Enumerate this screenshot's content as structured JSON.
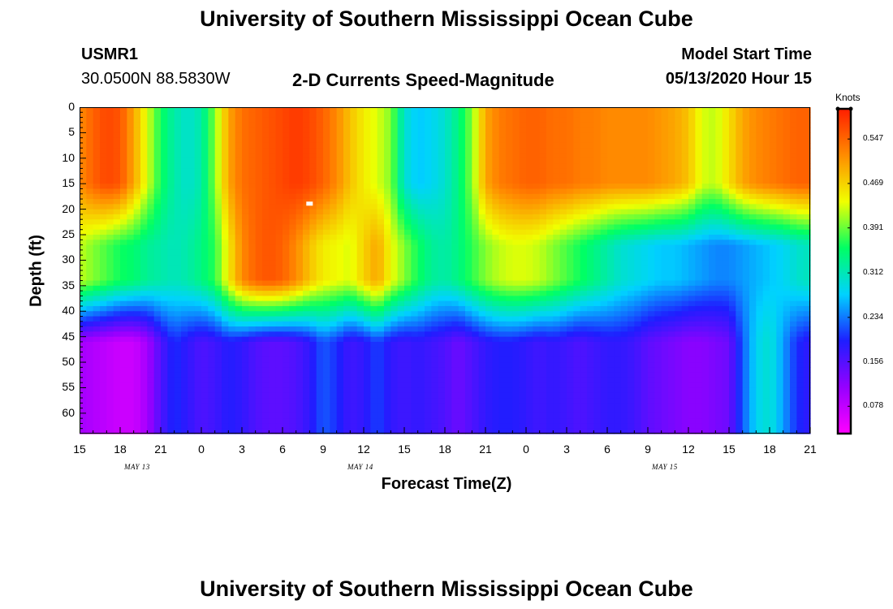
{
  "header": {
    "top_title": "University of Southern Mississippi Ocean Cube",
    "bottom_title": "University of Southern Mississippi Ocean Cube",
    "station_id": "USMR1",
    "station_coords": "30.0500N 88.5830W",
    "product_title": "2-D Currents Speed-Magnitude",
    "model_start_label": "Model Start Time",
    "model_start_value": "05/13/2020 Hour 15"
  },
  "chart_data": {
    "type": "heatmap",
    "title": "2-D Currents Speed-Magnitude",
    "xlabel": "Forecast Time(Z)",
    "ylabel": "Depth (ft)",
    "colorbar_label": "Knots",
    "x_ticks": [
      "15",
      "18",
      "21",
      "0",
      "3",
      "6",
      "9",
      "12",
      "15",
      "18",
      "21",
      "0",
      "3",
      "6",
      "9",
      "12",
      "15",
      "18",
      "21"
    ],
    "x_range_hours": [
      0,
      54
    ],
    "date_labels": [
      {
        "text": "MAY 13",
        "hour": 4.5
      },
      {
        "text": "MAY 14",
        "hour": 21
      },
      {
        "text": "MAY 15",
        "hour": 43.5
      }
    ],
    "y_ticks": [
      "0",
      "5",
      "10",
      "15",
      "20",
      "25",
      "30",
      "35",
      "40",
      "45",
      "50",
      "55",
      "60"
    ],
    "y_range_ft": [
      0,
      64
    ],
    "colorbar_ticks": [
      "0.547",
      "0.469",
      "0.391",
      "0.312",
      "0.234",
      "0.156",
      "0.078"
    ],
    "colorbar_range": [
      0.03,
      0.6
    ],
    "colormap": [
      "#ff00ff",
      "#9600ff",
      "#1e1eff",
      "#00d2ff",
      "#00ff64",
      "#f0ff00",
      "#ff8c00",
      "#ff1e00"
    ],
    "depth_profile_hours": [
      0,
      1,
      2,
      3,
      4,
      5,
      6,
      7,
      8,
      9,
      10,
      11,
      12,
      13,
      14,
      15,
      16,
      17,
      18,
      19,
      20,
      21,
      22,
      23,
      24,
      25,
      26,
      27,
      28,
      29,
      30,
      31,
      32,
      33,
      34,
      35,
      36,
      37,
      38,
      39,
      40,
      41,
      42,
      43,
      44,
      45,
      46,
      47,
      48,
      49,
      50,
      51,
      52,
      53,
      54
    ],
    "speed_by_hour": {
      "surface_0_15ft": [
        0.52,
        0.55,
        0.57,
        0.56,
        0.5,
        0.43,
        0.36,
        0.32,
        0.3,
        0.32,
        0.4,
        0.5,
        0.54,
        0.55,
        0.56,
        0.57,
        0.58,
        0.57,
        0.55,
        0.52,
        0.48,
        0.45,
        0.43,
        0.4,
        0.3,
        0.27,
        0.28,
        0.3,
        0.34,
        0.4,
        0.5,
        0.53,
        0.54,
        0.55,
        0.55,
        0.54,
        0.54,
        0.53,
        0.53,
        0.52,
        0.52,
        0.52,
        0.52,
        0.51,
        0.5,
        0.48,
        0.43,
        0.42,
        0.46,
        0.5,
        0.52,
        0.53,
        0.54,
        0.55,
        0.55
      ],
      "mid_20_35ft": [
        0.42,
        0.4,
        0.38,
        0.36,
        0.35,
        0.33,
        0.32,
        0.31,
        0.32,
        0.34,
        0.37,
        0.45,
        0.52,
        0.55,
        0.56,
        0.55,
        0.52,
        0.48,
        0.45,
        0.44,
        0.43,
        0.47,
        0.5,
        0.44,
        0.4,
        0.36,
        0.33,
        0.32,
        0.34,
        0.37,
        0.4,
        0.42,
        0.43,
        0.43,
        0.42,
        0.4,
        0.38,
        0.36,
        0.34,
        0.32,
        0.3,
        0.29,
        0.28,
        0.27,
        0.27,
        0.26,
        0.25,
        0.24,
        0.24,
        0.25,
        0.26,
        0.27,
        0.28,
        0.3,
        0.31
      ],
      "bottom_45_64ft": [
        0.1,
        0.09,
        0.08,
        0.07,
        0.07,
        0.1,
        0.16,
        0.2,
        0.18,
        0.16,
        0.17,
        0.19,
        0.18,
        0.16,
        0.15,
        0.15,
        0.16,
        0.18,
        0.22,
        0.2,
        0.17,
        0.18,
        0.21,
        0.18,
        0.17,
        0.18,
        0.17,
        0.16,
        0.14,
        0.16,
        0.18,
        0.19,
        0.19,
        0.18,
        0.17,
        0.18,
        0.17,
        0.16,
        0.17,
        0.18,
        0.18,
        0.17,
        0.15,
        0.14,
        0.13,
        0.12,
        0.12,
        0.13,
        0.14,
        0.22,
        0.28,
        0.3,
        0.25,
        0.2,
        0.18
      ]
    },
    "max_marker": {
      "hour": 17,
      "depth_ft": 19
    }
  }
}
